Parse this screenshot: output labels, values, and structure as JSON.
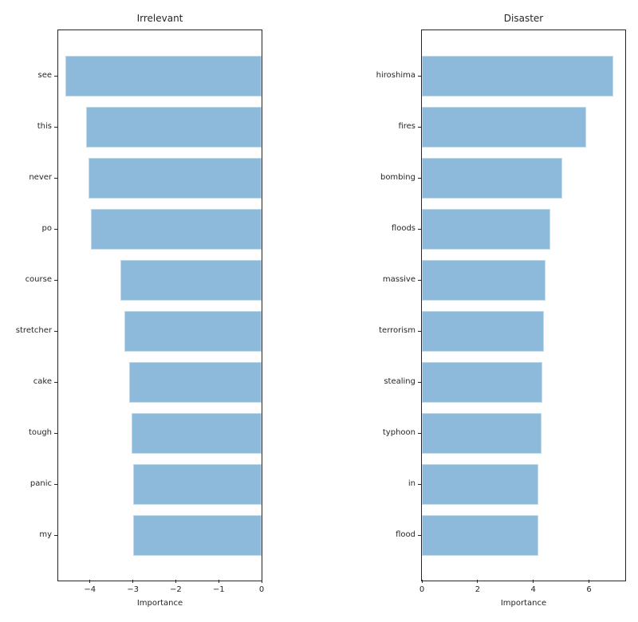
{
  "figure": {
    "background_color": "#ffffff",
    "text_color": "#262626",
    "spine_color": "#262626"
  },
  "chart_data": [
    {
      "type": "bar",
      "orientation": "horizontal",
      "title": "Irrelevant",
      "xlabel": "Importance",
      "categories": [
        "see",
        "this",
        "never",
        "po",
        "course",
        "stretcher",
        "cake",
        "tough",
        "panic",
        "my"
      ],
      "values": [
        -4.57,
        -4.09,
        -4.03,
        -3.97,
        -3.3,
        -3.2,
        -3.09,
        -3.04,
        -3.0,
        -3.0
      ],
      "xlim": [
        -4.74,
        0
      ],
      "xticks": [
        -4,
        -3,
        -2,
        -1,
        0
      ],
      "xtick_labels": [
        "−4",
        "−3",
        "−2",
        "−1",
        "0"
      ],
      "bar_color": "#8dbadb",
      "grid": false
    },
    {
      "type": "bar",
      "orientation": "horizontal",
      "title": "Disaster",
      "xlabel": "Importance",
      "categories": [
        "hiroshima",
        "fires",
        "bombing",
        "floods",
        "massive",
        "terrorism",
        "stealing",
        "typhoon",
        "in",
        "flood"
      ],
      "values": [
        6.87,
        5.9,
        5.05,
        4.6,
        4.45,
        4.37,
        4.33,
        4.3,
        4.18,
        4.18
      ],
      "xlim": [
        0,
        7.3
      ],
      "xticks": [
        0,
        2,
        4,
        6
      ],
      "xtick_labels": [
        "0",
        "2",
        "4",
        "6"
      ],
      "bar_color": "#8dbadb",
      "grid": false
    }
  ]
}
